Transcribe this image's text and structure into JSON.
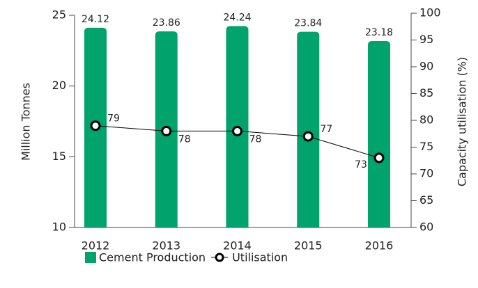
{
  "chart_data": {
    "type": "bar",
    "categories": [
      "2012",
      "2013",
      "2014",
      "2015",
      "2016"
    ],
    "series": [
      {
        "name": "Cement Production",
        "type": "bar",
        "color": "#00a36c",
        "values": [
          24.12,
          23.86,
          24.24,
          23.84,
          23.18
        ]
      },
      {
        "name": "Utilisation",
        "type": "line",
        "axis": "y2",
        "color": "#000000",
        "values": [
          79,
          78,
          78,
          77,
          73
        ]
      }
    ],
    "ylabel": "Million Tonnes",
    "y2label": "Capacity utilisation (%)",
    "ylim": [
      10,
      25
    ],
    "yticks": [
      10,
      15,
      20,
      25
    ],
    "y2lim": [
      60,
      100
    ],
    "y2ticks": [
      60,
      65,
      70,
      75,
      80,
      85,
      90,
      95,
      100
    ],
    "legend": "bottom"
  }
}
